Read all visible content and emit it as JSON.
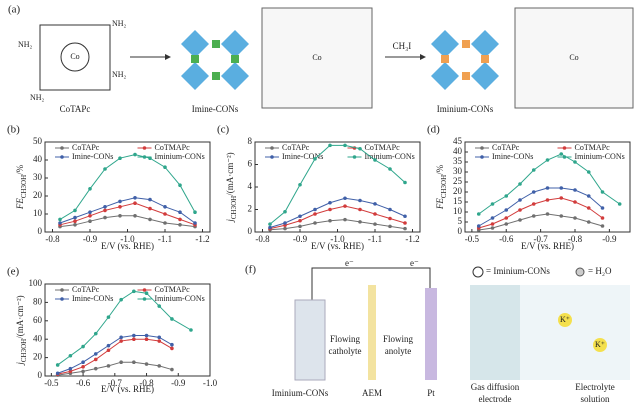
{
  "chart_data": [
    {
      "type": "line",
      "label": "(b)",
      "xlabel": "E/V (vs. RHE)",
      "ylabel": [
        "FE",
        "CH3OH",
        "/%"
      ],
      "x": [
        -0.82,
        -0.86,
        -0.9,
        -0.94,
        -0.98,
        -1.02,
        -1.06,
        -1.1,
        -1.14,
        -1.18
      ],
      "xlim": [
        -0.78,
        -1.22
      ],
      "xticks": [
        -0.8,
        -0.9,
        {
          "value": -1,
          "label": "-1.0"
        },
        -1.1,
        -1.2
      ],
      "ylim": [
        0,
        50
      ],
      "yticks": [
        0,
        10,
        20,
        30,
        40,
        50
      ],
      "series": [
        {
          "name": "CoTAPc",
          "color": "#707070",
          "values": [
            3,
            4,
            6,
            8,
            9,
            9,
            7,
            5,
            4,
            3
          ]
        },
        {
          "name": "CoTMAPc",
          "color": "#d23c3c",
          "values": [
            4,
            6,
            9,
            12,
            14,
            16,
            13,
            10,
            7,
            4
          ]
        },
        {
          "name": "Imine-CONs",
          "color": "#4060a8",
          "values": [
            5,
            8,
            11,
            14,
            17,
            19,
            18,
            14,
            11,
            5
          ]
        },
        {
          "name": "Iminium-CONs",
          "color": "#2fa68c",
          "values": [
            7,
            12,
            24,
            35,
            41,
            43,
            41,
            36,
            26,
            11
          ]
        }
      ]
    },
    {
      "type": "line",
      "label": "(c)",
      "xlabel": "E/V (vs. RHE)",
      "ylabel": [
        "j",
        "CH3OH",
        "/(mA·cm⁻²)"
      ],
      "x": [
        -0.82,
        -0.86,
        -0.9,
        -0.94,
        -0.98,
        -1.02,
        -1.06,
        -1.1,
        -1.14,
        -1.18
      ],
      "xlim": [
        -0.78,
        -1.22
      ],
      "xticks": [
        -0.8,
        -0.9,
        {
          "value": -1,
          "label": "-1.0"
        },
        -1.1,
        -1.2
      ],
      "ylim": [
        0,
        8
      ],
      "yticks": [
        0,
        2,
        4,
        6,
        8
      ],
      "series": [
        {
          "name": "CoTAPc",
          "color": "#707070",
          "values": [
            0.2,
            0.3,
            0.5,
            0.8,
            1.0,
            1.1,
            0.9,
            0.7,
            0.5,
            0.3
          ]
        },
        {
          "name": "CoTMAPc",
          "color": "#d23c3c",
          "values": [
            0.3,
            0.6,
            1.0,
            1.6,
            2.0,
            2.3,
            2.0,
            1.6,
            1.2,
            0.8
          ]
        },
        {
          "name": "Imine-CONs",
          "color": "#4060a8",
          "values": [
            0.4,
            0.8,
            1.4,
            2.0,
            2.6,
            3.0,
            2.8,
            2.5,
            2.0,
            1.4
          ]
        },
        {
          "name": "Iminium-CONs",
          "color": "#2fa68c",
          "values": [
            0.7,
            1.8,
            4.2,
            6.5,
            7.7,
            7.7,
            7.4,
            6.4,
            5.6,
            4.4
          ]
        }
      ]
    },
    {
      "type": "line",
      "label": "(d)",
      "xlabel": "E/V (vs. RHE)",
      "ylabel": [
        "FE",
        "CH3OH",
        "/%"
      ],
      "x": [
        -0.52,
        -0.56,
        -0.6,
        -0.64,
        -0.68,
        -0.72,
        -0.76,
        -0.8,
        -0.84,
        -0.88,
        -0.93
      ],
      "xlim": [
        -0.48,
        -0.96
      ],
      "xticks": [
        -0.5,
        -0.6,
        -0.7,
        -0.8,
        -0.9
      ],
      "ylim": [
        0,
        45
      ],
      "yticks": [
        0,
        5,
        10,
        15,
        20,
        25,
        30,
        35,
        40,
        45
      ],
      "series": [
        {
          "name": "CoTAPc",
          "color": "#707070",
          "values": [
            1,
            2,
            4,
            6,
            8,
            9,
            8,
            7,
            5,
            3,
            null
          ]
        },
        {
          "name": "CoTMAPc",
          "color": "#d23c3c",
          "values": [
            2,
            4,
            7,
            11,
            14,
            16,
            17,
            15,
            12,
            7,
            null
          ]
        },
        {
          "name": "Imine-CONs",
          "color": "#4060a8",
          "values": [
            3,
            7,
            11,
            16,
            20,
            22,
            22,
            21,
            18,
            12,
            null
          ]
        },
        {
          "name": "Iminium-CONs",
          "color": "#2fa68c",
          "values": [
            9,
            14,
            18,
            24,
            31,
            36,
            39,
            35,
            30,
            20,
            14
          ]
        }
      ]
    },
    {
      "type": "line",
      "label": "(e)",
      "xlabel": "E/V (vs. RHE)",
      "ylabel": [
        "j",
        "CH3OH",
        "/(mA·cm⁻²)"
      ],
      "x": [
        -0.52,
        -0.56,
        -0.6,
        -0.64,
        -0.68,
        -0.72,
        -0.76,
        -0.8,
        -0.84,
        -0.88,
        -0.94
      ],
      "xlim": [
        -0.48,
        -1.0
      ],
      "xticks": [
        -0.5,
        -0.6,
        -0.7,
        -0.8,
        -0.9,
        {
          "value": -1,
          "label": "-1.0"
        }
      ],
      "ylim": [
        0,
        100
      ],
      "yticks": [
        0,
        20,
        40,
        60,
        80,
        100
      ],
      "series": [
        {
          "name": "CoTAPc",
          "color": "#707070",
          "values": [
            1,
            3,
            5,
            8,
            11,
            15,
            15,
            13,
            11,
            7,
            null
          ]
        },
        {
          "name": "CoTMAPc",
          "color": "#d23c3c",
          "values": [
            2,
            5,
            10,
            18,
            28,
            38,
            40,
            40,
            38,
            30,
            null
          ]
        },
        {
          "name": "Imine-CONs",
          "color": "#4060a8",
          "values": [
            3,
            8,
            15,
            24,
            33,
            42,
            44,
            44,
            42,
            34,
            null
          ]
        },
        {
          "name": "Iminium-CONs",
          "color": "#2fa68c",
          "values": [
            12,
            22,
            32,
            46,
            64,
            83,
            92,
            90,
            76,
            62,
            50
          ]
        }
      ]
    }
  ],
  "scheme": {
    "label": "(a)",
    "reactant": "CoTAPc",
    "intermediate": "Imine-CONs",
    "reagent": "CH₃I",
    "product": "Iminium-CONs",
    "metal": "Co",
    "amine": "NH₂"
  },
  "cell": {
    "label": "(f)",
    "electron": "e⁻",
    "catholyte": [
      "Flowing",
      "catholyte"
    ],
    "anolyte": [
      "Flowing",
      "anolyte"
    ],
    "membrane": "AEM",
    "anode": "Pt",
    "cathode": "Iminium-CONs",
    "legend_plus": "= Iminium-CONs",
    "legend_water": "= H₂O",
    "gde": [
      "Gas diffusion",
      "electrode"
    ],
    "electrolyte": [
      "Electrolyte",
      "solution"
    ],
    "cation": "K⁺"
  }
}
